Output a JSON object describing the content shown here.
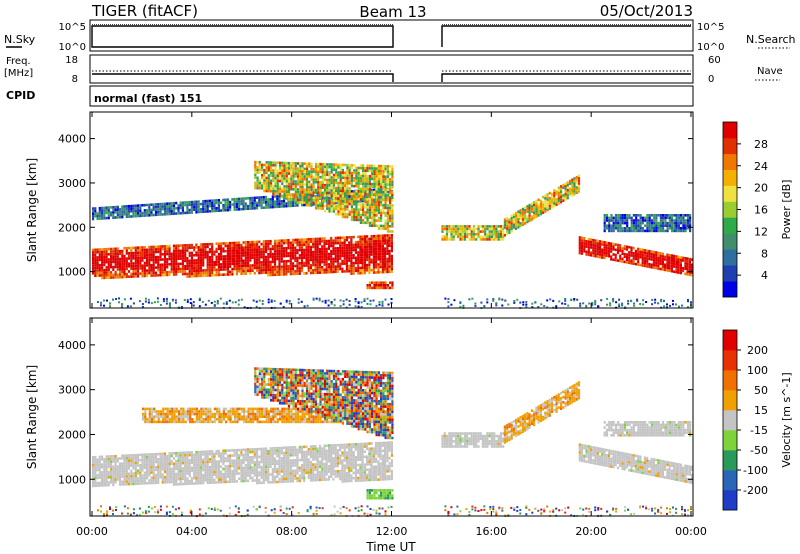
{
  "header": {
    "radar": "TIGER (fitACF)",
    "beam": "Beam 13",
    "date": "05/Oct/2013"
  },
  "status_panels": {
    "nsky_label": "N.Sky",
    "nsearch_label": "N.Search",
    "noise_ticks": [
      "10^5",
      "10^0"
    ],
    "noise_right_ticks": [
      "10^5",
      "10^0"
    ],
    "freq_label": "Freq.",
    "freq_unit": "[MHz]",
    "freq_ticks": [
      "18",
      "8"
    ],
    "nave_label": "Nave",
    "nave_ticks": [
      "60",
      "0"
    ],
    "cpid_label": "CPID",
    "cpid_value": "normal (fast) 151"
  },
  "chart_data": [
    {
      "type": "heatmap",
      "name": "power",
      "ylabel": "Slant Range [km]",
      "yticks": [
        1000,
        2000,
        3000,
        4000
      ],
      "ylim": [
        180,
        4600
      ],
      "xlim_hours": [
        0,
        24
      ],
      "data_gap_hours": [
        12.0,
        14.0
      ],
      "colorbar": {
        "label": "Power [dB]",
        "ticks": [
          "28",
          "24",
          "20",
          "16",
          "12",
          "8",
          "4"
        ],
        "colors": [
          "#0000e6",
          "#1f3fb0",
          "#2f6f9f",
          "#3f8f6f",
          "#2faa4a",
          "#9acd32",
          "#f0e040",
          "#f4b000",
          "#f07800",
          "#e03000",
          "#e00000"
        ]
      },
      "echo_bands": [
        {
          "start_h": 0.0,
          "end_h": 12.0,
          "range_start_km": [
            880,
            1520
          ],
          "range_end_km": [
            1000,
            1850
          ],
          "level": "high"
        },
        {
          "start_h": 0.0,
          "end_h": 12.0,
          "range_start_km": [
            2200,
            2450
          ],
          "range_end_km": [
            2650,
            2900
          ],
          "level": "low"
        },
        {
          "start_h": 6.5,
          "end_h": 12.0,
          "range_start_km": [
            2900,
            3500
          ],
          "range_end_km": [
            1900,
            3400
          ],
          "level": "mid"
        },
        {
          "start_h": 11.0,
          "end_h": 12.0,
          "range_start_km": [
            650,
            780
          ],
          "range_end_km": [
            650,
            780
          ],
          "level": "high"
        },
        {
          "start_h": 14.0,
          "end_h": 16.5,
          "range_start_km": [
            1700,
            2050
          ],
          "range_end_km": [
            1700,
            2050
          ],
          "level": "mid"
        },
        {
          "start_h": 16.5,
          "end_h": 19.5,
          "range_start_km": [
            1800,
            2200
          ],
          "range_end_km": [
            2800,
            3200
          ],
          "level": "mid"
        },
        {
          "start_h": 19.5,
          "end_h": 24.0,
          "range_start_km": [
            1400,
            1800
          ],
          "range_end_km": [
            900,
            1300
          ],
          "level": "high"
        },
        {
          "start_h": 20.5,
          "end_h": 24.0,
          "range_start_km": [
            1900,
            2300
          ],
          "range_end_km": [
            1900,
            2300
          ],
          "level": "low"
        }
      ]
    },
    {
      "type": "heatmap",
      "name": "velocity",
      "ylabel": "Slant Range [km]",
      "yticks": [
        1000,
        2000,
        3000,
        4000
      ],
      "ylim": [
        180,
        4600
      ],
      "xlim_hours": [
        0,
        24
      ],
      "xticks": [
        "00:00",
        "04:00",
        "08:00",
        "12:00",
        "16:00",
        "20:00",
        "00:00"
      ],
      "xlabel": "Time UT",
      "colorbar": {
        "label": "Velocity [m s^-1]",
        "ticks": [
          "200",
          "100",
          "50",
          "15",
          "-15",
          "-50",
          "-100",
          "-200"
        ],
        "colors": [
          "#1e3cc8",
          "#2a66b8",
          "#2a9a5a",
          "#7ed33a",
          "#c4c4c4",
          "#f0a000",
          "#f07000",
          "#e83000",
          "#e00000"
        ]
      },
      "echo_bands": [
        {
          "start_h": 0.0,
          "end_h": 12.0,
          "range_start_km": [
            880,
            1520
          ],
          "range_end_km": [
            1000,
            1850
          ],
          "level": "ground"
        },
        {
          "start_h": 2.0,
          "end_h": 12.0,
          "range_start_km": [
            2300,
            2600
          ],
          "range_end_km": [
            2300,
            2600
          ],
          "level": "negative"
        },
        {
          "start_h": 6.5,
          "end_h": 12.0,
          "range_start_km": [
            2900,
            3500
          ],
          "range_end_km": [
            1900,
            3400
          ],
          "level": "mixed"
        },
        {
          "start_h": 11.0,
          "end_h": 12.0,
          "range_start_km": [
            600,
            780
          ],
          "range_end_km": [
            600,
            780
          ],
          "level": "positive"
        },
        {
          "start_h": 14.0,
          "end_h": 16.5,
          "range_start_km": [
            1750,
            2050
          ],
          "range_end_km": [
            1750,
            2050
          ],
          "level": "ground"
        },
        {
          "start_h": 16.5,
          "end_h": 19.5,
          "range_start_km": [
            1800,
            2200
          ],
          "range_end_km": [
            2800,
            3200
          ],
          "level": "negative"
        },
        {
          "start_h": 19.5,
          "end_h": 24.0,
          "range_start_km": [
            1400,
            1800
          ],
          "range_end_km": [
            900,
            1300
          ],
          "level": "ground"
        },
        {
          "start_h": 19.0,
          "end_h": 20.5,
          "range_start_km": [
            2000,
            1700
          ],
          "range_end_km": [
            1700,
            1400
          ],
          "level": "positive"
        },
        {
          "start_h": 20.5,
          "end_h": 24.0,
          "range_start_km": [
            2000,
            2300
          ],
          "range_end_km": [
            2000,
            2300
          ],
          "level": "ground"
        }
      ]
    }
  ]
}
